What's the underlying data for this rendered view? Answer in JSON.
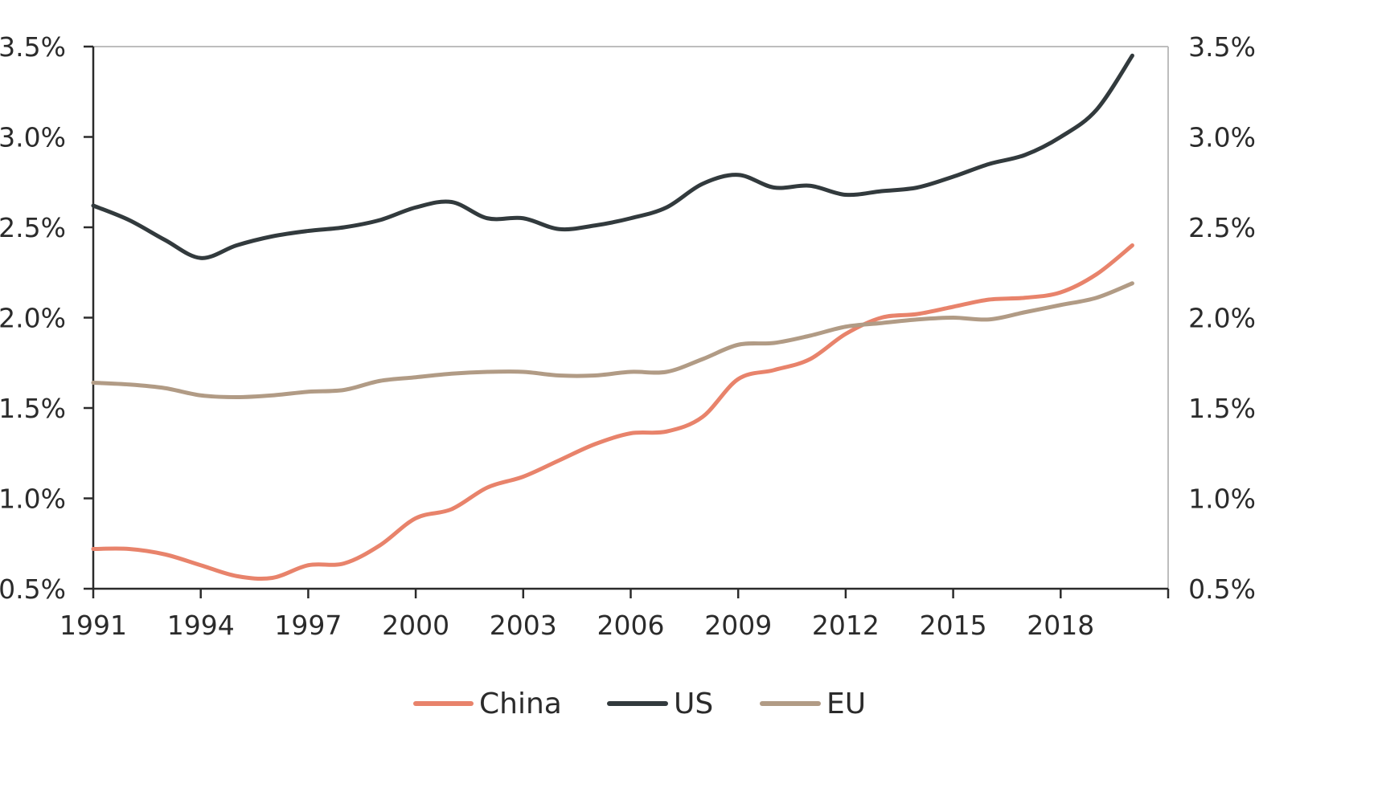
{
  "chart_data": {
    "type": "line",
    "title": "",
    "xlabel": "",
    "ylabel": "",
    "x_ticks": [
      "1991",
      "1994",
      "1997",
      "2000",
      "2003",
      "2006",
      "2009",
      "2012",
      "2015",
      "2018"
    ],
    "y_ticks": [
      "0.5%",
      "1.0%",
      "1.5%",
      "2.0%",
      "2.5%",
      "3.0%",
      "3.5%"
    ],
    "y_ticks_right": [
      "0.5%",
      "1.0%",
      "1.5%",
      "2.0%",
      "2.5%",
      "3.0%",
      "3.5%"
    ],
    "xlim": [
      1991,
      2021
    ],
    "ylim": [
      0.5,
      3.5
    ],
    "y_unit": "%",
    "grid": false,
    "legend_position": "bottom-center",
    "x": [
      1991,
      1992,
      1993,
      1994,
      1995,
      1996,
      1997,
      1998,
      1999,
      2000,
      2001,
      2002,
      2003,
      2004,
      2005,
      2006,
      2007,
      2008,
      2009,
      2010,
      2011,
      2012,
      2013,
      2014,
      2015,
      2016,
      2017,
      2018,
      2019,
      2020
    ],
    "series": [
      {
        "name": "China",
        "color": "#e8836b",
        "values": [
          0.72,
          0.72,
          0.69,
          0.63,
          0.57,
          0.56,
          0.63,
          0.64,
          0.74,
          0.89,
          0.94,
          1.06,
          1.12,
          1.21,
          1.3,
          1.36,
          1.37,
          1.45,
          1.66,
          1.71,
          1.77,
          1.91,
          2.0,
          2.02,
          2.06,
          2.1,
          2.11,
          2.14,
          2.24,
          2.4
        ]
      },
      {
        "name": "US",
        "color": "#323a3d",
        "values": [
          2.62,
          2.54,
          2.43,
          2.33,
          2.4,
          2.45,
          2.48,
          2.5,
          2.54,
          2.61,
          2.64,
          2.55,
          2.55,
          2.49,
          2.51,
          2.55,
          2.61,
          2.74,
          2.79,
          2.72,
          2.73,
          2.68,
          2.7,
          2.72,
          2.78,
          2.85,
          2.9,
          3.0,
          3.15,
          3.45
        ]
      },
      {
        "name": "EU",
        "color": "#b19b85",
        "values": [
          1.64,
          1.63,
          1.61,
          1.57,
          1.56,
          1.57,
          1.59,
          1.6,
          1.65,
          1.67,
          1.69,
          1.7,
          1.7,
          1.68,
          1.68,
          1.7,
          1.7,
          1.77,
          1.85,
          1.86,
          1.9,
          1.95,
          1.97,
          1.99,
          2.0,
          1.99,
          2.03,
          2.07,
          2.11,
          2.19
        ]
      }
    ]
  }
}
